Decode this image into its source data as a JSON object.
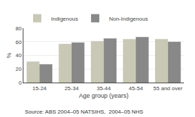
{
  "chart_data": {
    "type": "bar",
    "categories": [
      "15-24",
      "25-34",
      "35-44",
      "45-54",
      "55 and over"
    ],
    "series": [
      {
        "name": "Indigenous",
        "color": "#c8c8b4",
        "values": [
          31,
          57,
          61,
          64,
          64
        ]
      },
      {
        "name": "Non-Indigenous",
        "color": "#888888",
        "values": [
          27,
          59,
          65,
          67,
          60
        ]
      }
    ],
    "xlabel": "Age group (years)",
    "ylabel": "%",
    "ylim": [
      0,
      80
    ],
    "yticks": [
      0,
      20,
      40,
      60,
      80
    ],
    "grid": true,
    "legend": "upper left",
    "annotations": [
      "Source: ABS 2004–05 NATSIHS,  2004–05 NHS"
    ]
  }
}
